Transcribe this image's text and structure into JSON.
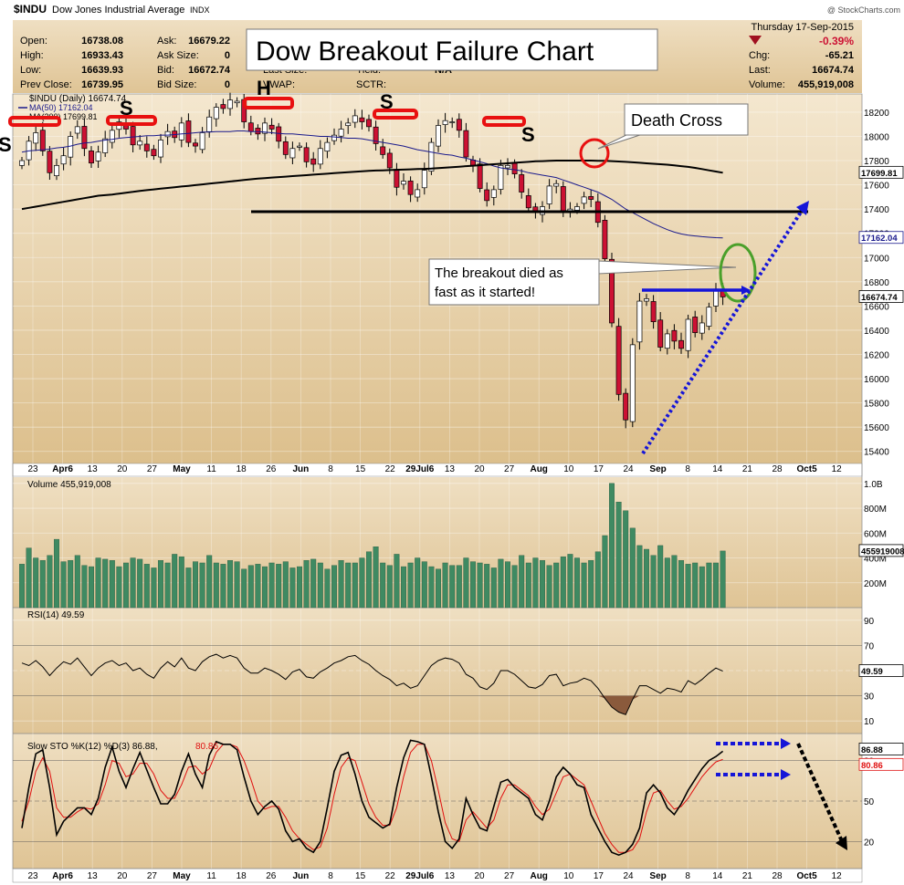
{
  "header": {
    "symbol": "$INDU",
    "name": "Dow Jones Industrial Average",
    "exchange": "INDX",
    "date": "Thursday   17-Sep-2015",
    "pct_change": "-0.39%",
    "watermark": "@ StockCharts.com",
    "quote": {
      "open_label": "Open:",
      "open": "16738.08",
      "high_label": "High:",
      "high": "16933.43",
      "low_label": "Low:",
      "low": "16639.93",
      "prev_label": "Prev Close:",
      "prev": "16739.95",
      "ask_label": "Ask:",
      "ask": "16679.22",
      "asksize_label": "Ask Size:",
      "asksize": "0",
      "bid_label": "Bid:",
      "bid": "16672.74",
      "bidsize_label": "Bid Size:",
      "bidsize": "0",
      "lastsize_label": "Last Size:",
      "yield_label": "Yield:",
      "yield": "N/A",
      "vwap_label": "VWAP:",
      "sctr_label": "SCTR:",
      "chg_label": "Chg:",
      "chg": "-65.21",
      "last_label": "Last:",
      "last": "16674.74",
      "volume_label": "Volume:",
      "volume": "455,919,008"
    }
  },
  "annotations": {
    "title": "Dow Breakout Failure Chart",
    "death_cross": "Death Cross",
    "breakout": [
      "The breakout died as",
      "fast as it started!"
    ],
    "hs_labels": [
      "S",
      "S",
      "H",
      "S",
      "S",
      "S"
    ]
  },
  "colors": {
    "bg": "#e3c99c",
    "bg_light": "#f3e6cc",
    "up": "#ffffff",
    "down": "#cc1133",
    "ma50": "#1a1a8c",
    "ma200": "#000000",
    "volume": "#3f8a62",
    "blue_annot": "#1515d8",
    "red_annot": "#e81010",
    "green_annot": "#4aa02a",
    "stoch_d": "#e01010"
  },
  "x_ticks": [
    "23",
    "Apr6",
    "13",
    "20",
    "27",
    "May",
    "11",
    "18",
    "26",
    "Jun",
    "8",
    "15",
    "22",
    "29Jul6",
    "13",
    "20",
    "27",
    "Aug",
    "10",
    "17",
    "24",
    "Sep",
    "8",
    "14",
    "21",
    "28",
    "Oct5",
    "12"
  ],
  "price_panel": {
    "legend": [
      "$INDU (Daily) 16674.74",
      "MA(50) 17162.04",
      "MA(200) 17699.81"
    ],
    "yticks": [
      18200,
      18000,
      17800,
      17600,
      17400,
      17200,
      17000,
      16800,
      16600,
      16400,
      16200,
      16000,
      15800,
      15600,
      15400
    ],
    "tags": [
      "17699.81",
      "17162.04",
      "16674.74"
    ]
  },
  "volume_panel": {
    "legend": "Volume 455,919,008",
    "yticks": [
      "1.0B",
      "800M",
      "600M",
      "400M",
      "200M"
    ],
    "tag": "455919008"
  },
  "rsi_panel": {
    "legend": "RSI(14) 49.59",
    "yticks": [
      "90",
      "70",
      "50",
      "30",
      "10"
    ],
    "tag": "49.59"
  },
  "sto_panel": {
    "legend": "Slow STO %K(12) %D(3) 86.88,",
    "legend_d": "80.86",
    "yticks": [
      "80",
      "50",
      "20"
    ],
    "tag_k": "86.88",
    "tag_d": "80.86"
  },
  "chart_data": [
    {
      "type": "line",
      "title": "Dow Breakout Failure Chart",
      "x_labels": [
        "23",
        "Apr6",
        "13",
        "20",
        "27",
        "May",
        "11",
        "18",
        "26",
        "Jun",
        "8",
        "15",
        "22",
        "29Jul6",
        "13",
        "20",
        "27",
        "Aug",
        "10",
        "17",
        "24",
        "Sep",
        "8",
        "14",
        "21",
        "28",
        "Oct5",
        "12"
      ],
      "ylim": [
        15300,
        18350
      ],
      "close": [
        17800,
        17960,
        18030,
        17880,
        17700,
        17760,
        17840,
        18000,
        18080,
        17900,
        17780,
        17870,
        17980,
        18050,
        18120,
        18060,
        17930,
        17960,
        17880,
        17840,
        17970,
        18040,
        17990,
        18110,
        17950,
        17920,
        18030,
        18160,
        18240,
        18230,
        18300,
        18290,
        18120,
        18040,
        18020,
        18110,
        18060,
        17960,
        17850,
        17900,
        17920,
        17790,
        17770,
        17900,
        17950,
        18010,
        18060,
        18110,
        18170,
        18120,
        18080,
        17940,
        17850,
        17740,
        17580,
        17630,
        17520,
        17560,
        17720,
        17950,
        18090,
        18130,
        18120,
        18050,
        17830,
        17760,
        17570,
        17470,
        17560,
        17760,
        17760,
        17690,
        17540,
        17410,
        17370,
        17420,
        17590,
        17610,
        17370,
        17400,
        17420,
        17500,
        17480,
        17290,
        16990,
        16460,
        15870,
        15660,
        16280,
        16640,
        16660,
        16470,
        16260,
        16370,
        16310,
        16250,
        16490,
        16380,
        16460,
        16590,
        16740,
        16675
      ],
      "ma50": [
        17870,
        17880,
        17885,
        17890,
        17895,
        17905,
        17910,
        17920,
        17935,
        17945,
        17950,
        17960,
        17970,
        17975,
        17985,
        17990,
        17995,
        18000,
        18005,
        18005,
        18010,
        18010,
        18015,
        18020,
        18025,
        18030,
        18035,
        18035,
        18040,
        18040,
        18040,
        18045,
        18045,
        18040,
        18040,
        18035,
        18030,
        18025,
        18020,
        18020,
        18015,
        18010,
        18005,
        18000,
        18000,
        17995,
        17990,
        17985,
        17985,
        17980,
        17970,
        17960,
        17950,
        17940,
        17930,
        17920,
        17905,
        17890,
        17880,
        17870,
        17860,
        17850,
        17845,
        17830,
        17820,
        17805,
        17790,
        17775,
        17755,
        17740,
        17730,
        17725,
        17715,
        17700,
        17690,
        17680,
        17670,
        17660,
        17640,
        17620,
        17600,
        17580,
        17560,
        17540,
        17510,
        17480,
        17440,
        17400,
        17370,
        17340,
        17310,
        17280,
        17255,
        17230,
        17210,
        17195,
        17185,
        17178,
        17172,
        17168,
        17164,
        17162
      ],
      "ma200": [
        17400,
        17410,
        17420,
        17430,
        17440,
        17450,
        17460,
        17470,
        17480,
        17490,
        17500,
        17510,
        17515,
        17520,
        17528,
        17535,
        17542,
        17550,
        17556,
        17562,
        17568,
        17574,
        17580,
        17586,
        17592,
        17598,
        17604,
        17610,
        17616,
        17622,
        17628,
        17634,
        17640,
        17646,
        17652,
        17656,
        17660,
        17664,
        17668,
        17672,
        17676,
        17680,
        17684,
        17688,
        17692,
        17696,
        17700,
        17704,
        17708,
        17712,
        17716,
        17718,
        17720,
        17722,
        17724,
        17726,
        17728,
        17730,
        17732,
        17734,
        17738,
        17742,
        17746,
        17750,
        17754,
        17758,
        17762,
        17766,
        17770,
        17774,
        17778,
        17782,
        17786,
        17790,
        17794,
        17796,
        17798,
        17800,
        17800,
        17800,
        17800,
        17800,
        17800,
        17799,
        17798,
        17796,
        17793,
        17790,
        17786,
        17782,
        17778,
        17774,
        17770,
        17766,
        17760,
        17754,
        17748,
        17740,
        17730,
        17720,
        17710,
        17700
      ]
    },
    {
      "type": "bar",
      "title": "Volume",
      "ylim": [
        0,
        1050000000
      ],
      "values": [
        350,
        480,
        400,
        380,
        420,
        550,
        370,
        380,
        420,
        340,
        330,
        400,
        390,
        380,
        330,
        360,
        400,
        390,
        350,
        320,
        380,
        360,
        430,
        410,
        320,
        370,
        360,
        420,
        360,
        350,
        380,
        370,
        310,
        340,
        350,
        330,
        360,
        350,
        370,
        320,
        330,
        380,
        390,
        360,
        310,
        340,
        380,
        360,
        360,
        400,
        450,
        490,
        360,
        340,
        430,
        330,
        360,
        400,
        370,
        330,
        310,
        360,
        340,
        340,
        400,
        370,
        360,
        350,
        320,
        390,
        370,
        340,
        420,
        360,
        400,
        380,
        340,
        360,
        410,
        430,
        400,
        360,
        380,
        450,
        580,
        1000,
        850,
        780,
        640,
        500,
        470,
        420,
        500,
        400,
        420,
        380,
        350,
        360,
        330,
        360,
        360,
        456
      ]
    },
    {
      "type": "line",
      "title": "RSI(14)",
      "ylim": [
        0,
        100
      ],
      "values": [
        56,
        54,
        58,
        53,
        46,
        52,
        57,
        55,
        60,
        53,
        46,
        52,
        56,
        58,
        54,
        56,
        50,
        52,
        47,
        44,
        52,
        57,
        53,
        60,
        52,
        50,
        57,
        61,
        63,
        60,
        62,
        60,
        52,
        48,
        48,
        52,
        50,
        47,
        43,
        49,
        51,
        45,
        44,
        49,
        52,
        56,
        58,
        61,
        62,
        58,
        55,
        50,
        46,
        43,
        38,
        40,
        36,
        38,
        46,
        54,
        58,
        60,
        59,
        56,
        47,
        44,
        37,
        35,
        40,
        50,
        50,
        47,
        42,
        37,
        36,
        39,
        46,
        47,
        38,
        40,
        41,
        44,
        42,
        36,
        28,
        21,
        17,
        15,
        27,
        38,
        38,
        35,
        32,
        36,
        35,
        33,
        42,
        39,
        43,
        48,
        52,
        49.59
      ]
    },
    {
      "type": "line",
      "title": "Slow STO %K(12) %D(3)",
      "ylim": [
        0,
        100
      ],
      "series": [
        {
          "name": "%K",
          "values": [
            30,
            60,
            85,
            88,
            60,
            25,
            35,
            40,
            45,
            45,
            40,
            52,
            75,
            90,
            72,
            60,
            74,
            86,
            73,
            60,
            48,
            48,
            55,
            72,
            85,
            70,
            60,
            84,
            94,
            92,
            92,
            88,
            68,
            50,
            40,
            46,
            50,
            44,
            28,
            20,
            22,
            15,
            12,
            20,
            45,
            72,
            84,
            86,
            70,
            50,
            38,
            34,
            30,
            33,
            60,
            82,
            95,
            94,
            92,
            68,
            42,
            20,
            15,
            22,
            52,
            40,
            30,
            28,
            46,
            64,
            66,
            60,
            56,
            52,
            40,
            36,
            50,
            68,
            75,
            70,
            62,
            60,
            40,
            30,
            20,
            12,
            10,
            12,
            18,
            30,
            56,
            62,
            56,
            45,
            40,
            48,
            58,
            66,
            74,
            80,
            83,
            86.88
          ]
        },
        {
          "name": "%D",
          "values": [
            35,
            50,
            72,
            82,
            72,
            45,
            38,
            38,
            42,
            45,
            44,
            48,
            62,
            80,
            78,
            68,
            70,
            78,
            78,
            70,
            58,
            52,
            52,
            62,
            75,
            76,
            70,
            74,
            86,
            92,
            92,
            90,
            80,
            66,
            50,
            44,
            46,
            46,
            38,
            28,
            22,
            18,
            14,
            16,
            30,
            55,
            75,
            82,
            80,
            64,
            48,
            38,
            32,
            32,
            45,
            68,
            86,
            92,
            92,
            80,
            58,
            34,
            22,
            20,
            36,
            42,
            36,
            30,
            36,
            52,
            62,
            62,
            58,
            54,
            46,
            40,
            44,
            56,
            68,
            70,
            66,
            62,
            50,
            38,
            26,
            18,
            12,
            12,
            14,
            22,
            42,
            56,
            58,
            50,
            44,
            46,
            52,
            60,
            68,
            74,
            79,
            80.86
          ]
        }
      ]
    }
  ]
}
